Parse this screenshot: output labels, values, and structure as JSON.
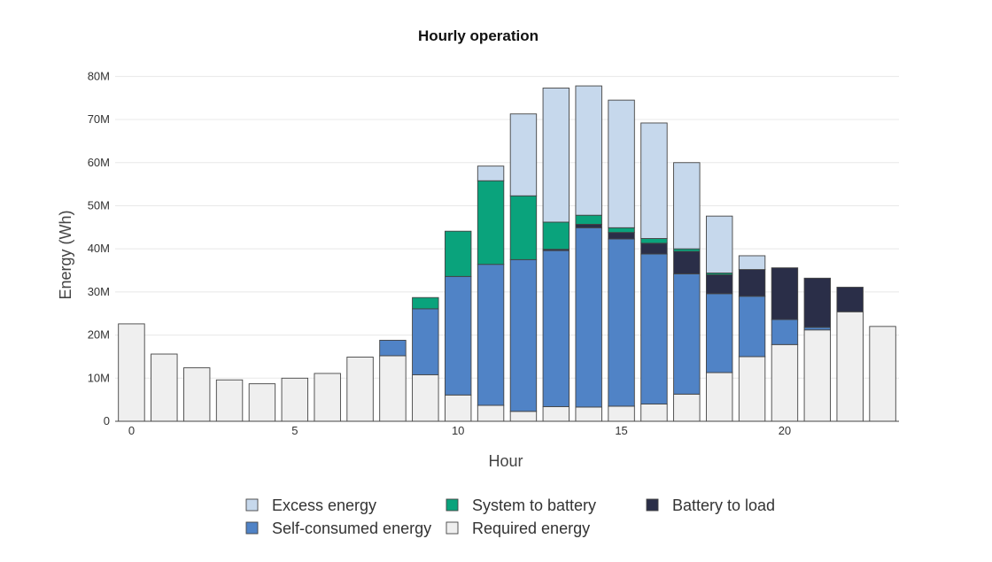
{
  "chart_data": {
    "type": "bar",
    "stacked": true,
    "title": "Hourly operation",
    "xlabel": "Hour",
    "ylabel": "Energy (Wh)",
    "x": [
      0,
      1,
      2,
      3,
      4,
      5,
      6,
      7,
      8,
      9,
      10,
      11,
      12,
      13,
      14,
      15,
      16,
      17,
      18,
      19,
      20,
      21,
      22,
      23
    ],
    "x_ticks": [
      0,
      5,
      10,
      15,
      20
    ],
    "y_ticks": [
      0,
      10000000,
      20000000,
      30000000,
      40000000,
      50000000,
      60000000,
      70000000,
      80000000
    ],
    "y_tick_labels": [
      "0",
      "10M",
      "20M",
      "30M",
      "40M",
      "50M",
      "60M",
      "70M",
      "80M"
    ],
    "ylim": [
      0,
      85000000
    ],
    "xlim": [
      -0.5,
      23.5
    ],
    "grid": true,
    "legend_position": "bottom",
    "series": [
      {
        "name": "Required energy",
        "color": "#efefef",
        "values": [
          22600000,
          15600000,
          12400000,
          9600000,
          8700000,
          10000000,
          11100000,
          14900000,
          15200000,
          10800000,
          6100000,
          3700000,
          2300000,
          3400000,
          3300000,
          3500000,
          4000000,
          6300000,
          11300000,
          15000000,
          17800000,
          21200000,
          25400000,
          22000000
        ]
      },
      {
        "name": "Self-consumed energy",
        "color": "#5083c6",
        "values": [
          0,
          0,
          0,
          0,
          0,
          0,
          0,
          0,
          3600000,
          15300000,
          27500000,
          32700000,
          35200000,
          36200000,
          41600000,
          38800000,
          34800000,
          27900000,
          18300000,
          14000000,
          5800000,
          600000,
          0,
          0
        ]
      },
      {
        "name": "Battery to load",
        "color": "#2a2e48",
        "values": [
          0,
          0,
          0,
          0,
          0,
          0,
          0,
          0,
          0,
          0,
          0,
          0,
          0,
          300000,
          800000,
          1500000,
          2500000,
          5200000,
          4400000,
          6200000,
          12000000,
          11400000,
          5700000,
          0
        ]
      },
      {
        "name": "System to battery",
        "color": "#0aa37c",
        "values": [
          0,
          0,
          0,
          0,
          0,
          0,
          0,
          0,
          0,
          2600000,
          10500000,
          19400000,
          14800000,
          6300000,
          2100000,
          1100000,
          1100000,
          600000,
          400000,
          0,
          0,
          0,
          0,
          0
        ]
      },
      {
        "name": "Excess energy",
        "color": "#c6d8ec",
        "values": [
          0,
          0,
          0,
          0,
          0,
          0,
          0,
          0,
          0,
          0,
          0,
          3400000,
          19000000,
          31100000,
          30000000,
          29600000,
          26800000,
          20000000,
          13200000,
          3200000,
          0,
          0,
          0,
          0
        ]
      }
    ],
    "legend_order": [
      "Excess energy",
      "System to battery",
      "Battery to load",
      "Self-consumed energy",
      "Required energy"
    ]
  }
}
